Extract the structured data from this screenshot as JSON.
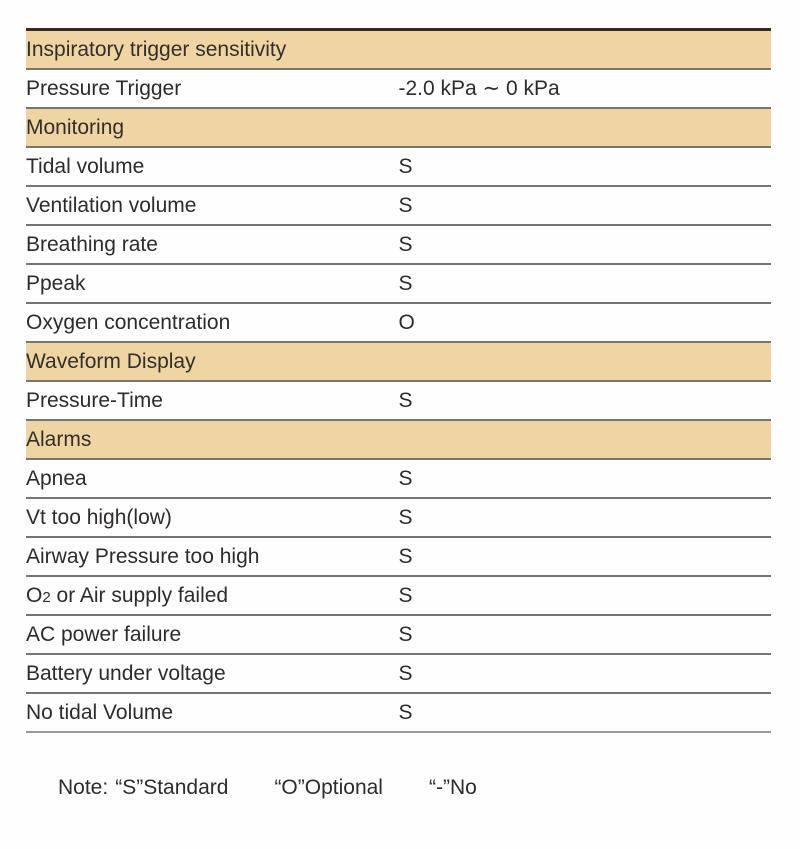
{
  "colors": {
    "section_background": "#F0D5A4",
    "text": "#2E2C2A",
    "table_top_border": "#34: 2D24",
    "row_rule": "#757571",
    "table_bottom_border": "#9A9A98",
    "page_background": "#FFFEFE"
  },
  "table": {
    "rows": [
      {
        "type": "section",
        "label": "Inspiratory trigger sensitivity"
      },
      {
        "type": "data",
        "label": "Pressure Trigger",
        "value": "-2.0 kPa ∼ 0 kPa"
      },
      {
        "type": "section",
        "label": "Monitoring"
      },
      {
        "type": "data",
        "label": "Tidal volume",
        "value": "S"
      },
      {
        "type": "data",
        "label": "Ventilation volume",
        "value": "S"
      },
      {
        "type": "data",
        "label": "Breathing rate",
        "value": "S"
      },
      {
        "type": "data",
        "label": "Ppeak",
        "value": "S"
      },
      {
        "type": "data",
        "label": "Oxygen concentration",
        "value": "O"
      },
      {
        "type": "section",
        "label": "Waveform Display"
      },
      {
        "type": "data",
        "label": "Pressure-Time",
        "value": "S"
      },
      {
        "type": "section",
        "label": "Alarms"
      },
      {
        "type": "data",
        "label": "Apnea",
        "value": "S"
      },
      {
        "type": "data",
        "label": "Vt too high(low)",
        "value": "S"
      },
      {
        "type": "data",
        "label": "Airway Pressure too high",
        "value": "S"
      },
      {
        "type": "data",
        "label": "O2 or Air supply failed",
        "value": "S",
        "parts": [
          {
            "t": "O"
          },
          {
            "t": "2",
            "small": true
          },
          {
            "t": " or Air supply failed"
          }
        ]
      },
      {
        "type": "data",
        "label": "AC power failure",
        "value": "S"
      },
      {
        "type": "data",
        "label": "Battery under voltage",
        "value": "S"
      },
      {
        "type": "data",
        "label": "No tidal Volume",
        "value": "S"
      }
    ]
  },
  "note": {
    "prefix": "Note:",
    "legend": [
      "“S”Standard",
      "“O”Optional",
      "“-”No"
    ]
  }
}
